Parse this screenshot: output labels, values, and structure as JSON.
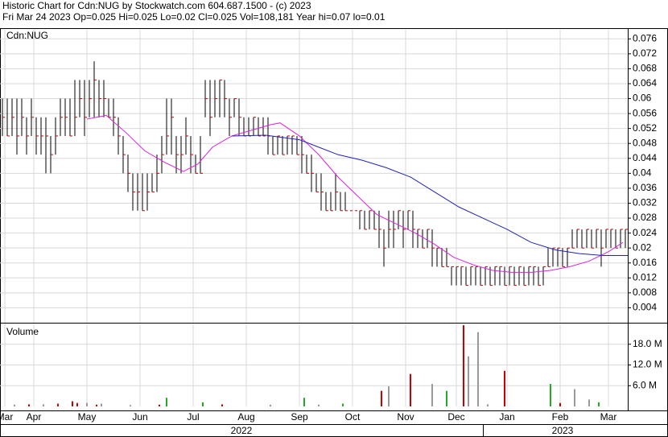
{
  "header": {
    "line1": "Historic Chart for Cdn:NUG by Stockwatch.com 604.687.1500 - (c) 2023",
    "line2": "Fri Mar 24 2023   Op=0.025   Hi=0.025   Lo=0.02   Cl=0.025   Vol=108,181   Year hi=0.07   lo=0.01"
  },
  "chart_data": [
    {
      "type": "ohlc",
      "title": "Cdn:NUG",
      "bar_color": "#000000",
      "close_color": "#cc0000",
      "grid": true,
      "xlim": [
        0,
        130
      ],
      "ylim": [
        0,
        0.078
      ],
      "yticks": [
        0.004,
        0.008,
        0.012,
        0.016,
        0.02,
        0.024,
        0.028,
        0.032,
        0.036,
        0.04,
        0.044,
        0.048,
        0.052,
        0.056,
        0.06,
        0.064,
        0.068,
        0.072,
        0.076
      ],
      "close": [
        0.055,
        0.05,
        0.055,
        0.05,
        0.055,
        0.05,
        0.055,
        0.05,
        0.05,
        0.05,
        0.045,
        0.05,
        0.055,
        0.055,
        0.05,
        0.055,
        0.06,
        0.055,
        0.06,
        0.065,
        0.06,
        0.06,
        0.055,
        0.055,
        0.05,
        0.045,
        0.04,
        0.035,
        0.035,
        0.03,
        0.035,
        0.035,
        0.04,
        0.045,
        0.05,
        0.055,
        0.045,
        0.045,
        0.05,
        0.045,
        0.04,
        0.04,
        0.06,
        0.055,
        0.06,
        0.065,
        0.06,
        0.055,
        0.06,
        0.055,
        0.05,
        0.05,
        0.055,
        0.05,
        0.05,
        0.05,
        0.045,
        0.05,
        0.045,
        0.05,
        0.05,
        0.045,
        0.045,
        0.04,
        0.04,
        0.035,
        0.035,
        0.03,
        0.03,
        0.035,
        0.03,
        0.03,
        0.03,
        0.03,
        0.03,
        0.025,
        0.03,
        0.025,
        0.025,
        0.02,
        0.025,
        0.025,
        0.03,
        0.025,
        0.03,
        0.025,
        0.025,
        0.02,
        0.025,
        0.02,
        0.02,
        0.015,
        0.015,
        0.015,
        0.015,
        0.015,
        0.01,
        0.015,
        0.015,
        0.01,
        0.015,
        0.01,
        0.015,
        0.015,
        0.01,
        0.015,
        0.01,
        0.015,
        0.01,
        0.015,
        0.015,
        0.01,
        0.015,
        0.015,
        0.02,
        0.02,
        0.015,
        0.02,
        0.02,
        0.025,
        0.02,
        0.025,
        0.02,
        0.025,
        0.02,
        0.025,
        0.025,
        0.02,
        0.025,
        0.025
      ],
      "high": [
        0.06,
        0.06,
        0.06,
        0.06,
        0.06,
        0.055,
        0.06,
        0.055,
        0.055,
        0.055,
        0.05,
        0.055,
        0.06,
        0.06,
        0.06,
        0.065,
        0.065,
        0.065,
        0.065,
        0.07,
        0.065,
        0.065,
        0.06,
        0.06,
        0.055,
        0.05,
        0.045,
        0.04,
        0.04,
        0.04,
        0.04,
        0.04,
        0.045,
        0.05,
        0.06,
        0.06,
        0.05,
        0.05,
        0.055,
        0.05,
        0.045,
        0.05,
        0.065,
        0.065,
        0.065,
        0.065,
        0.065,
        0.06,
        0.06,
        0.06,
        0.055,
        0.055,
        0.055,
        0.055,
        0.055,
        0.055,
        0.05,
        0.05,
        0.05,
        0.05,
        0.05,
        0.05,
        0.05,
        0.045,
        0.045,
        0.04,
        0.04,
        0.035,
        0.035,
        0.04,
        0.035,
        0.035,
        0.03,
        0.03,
        0.03,
        0.03,
        0.03,
        0.03,
        0.03,
        0.025,
        0.03,
        0.03,
        0.03,
        0.03,
        0.03,
        0.03,
        0.025,
        0.025,
        0.025,
        0.025,
        0.02,
        0.02,
        0.02,
        0.015,
        0.015,
        0.015,
        0.015,
        0.015,
        0.015,
        0.015,
        0.015,
        0.015,
        0.015,
        0.015,
        0.015,
        0.015,
        0.015,
        0.015,
        0.015,
        0.015,
        0.015,
        0.015,
        0.015,
        0.02,
        0.02,
        0.02,
        0.02,
        0.02,
        0.025,
        0.025,
        0.025,
        0.025,
        0.025,
        0.025,
        0.025,
        0.025,
        0.025,
        0.025,
        0.025,
        0.025
      ],
      "low": [
        0.05,
        0.05,
        0.05,
        0.045,
        0.05,
        0.045,
        0.05,
        0.045,
        0.045,
        0.04,
        0.04,
        0.045,
        0.05,
        0.05,
        0.05,
        0.05,
        0.055,
        0.05,
        0.055,
        0.055,
        0.055,
        0.055,
        0.055,
        0.05,
        0.045,
        0.04,
        0.035,
        0.03,
        0.03,
        0.03,
        0.03,
        0.035,
        0.035,
        0.04,
        0.045,
        0.045,
        0.04,
        0.04,
        0.045,
        0.04,
        0.04,
        0.04,
        0.055,
        0.05,
        0.055,
        0.055,
        0.055,
        0.05,
        0.055,
        0.05,
        0.05,
        0.05,
        0.05,
        0.05,
        0.05,
        0.045,
        0.045,
        0.045,
        0.045,
        0.045,
        0.045,
        0.045,
        0.04,
        0.04,
        0.035,
        0.035,
        0.03,
        0.03,
        0.03,
        0.03,
        0.03,
        0.03,
        0.03,
        0.03,
        0.025,
        0.025,
        0.025,
        0.025,
        0.02,
        0.015,
        0.02,
        0.02,
        0.025,
        0.02,
        0.025,
        0.02,
        0.02,
        0.02,
        0.02,
        0.015,
        0.015,
        0.015,
        0.015,
        0.01,
        0.01,
        0.01,
        0.01,
        0.01,
        0.01,
        0.01,
        0.01,
        0.01,
        0.01,
        0.01,
        0.01,
        0.01,
        0.01,
        0.01,
        0.01,
        0.01,
        0.01,
        0.01,
        0.01,
        0.015,
        0.015,
        0.015,
        0.015,
        0.015,
        0.02,
        0.02,
        0.02,
        0.02,
        0.02,
        0.02,
        0.015,
        0.02,
        0.02,
        0.02,
        0.02,
        0.02
      ],
      "lines": [
        {
          "color": "#dd22dd",
          "x": [
            18,
            22,
            26,
            30,
            34,
            38,
            41,
            44,
            48,
            52,
            56,
            58,
            62,
            66,
            70,
            74,
            78,
            82,
            86,
            90,
            94,
            98,
            102,
            106,
            110,
            114,
            118,
            122,
            126,
            129
          ],
          "values": [
            0.0545,
            0.0555,
            0.051,
            0.046,
            0.043,
            0.0405,
            0.0425,
            0.047,
            0.05,
            0.0515,
            0.053,
            0.0535,
            0.05,
            0.045,
            0.039,
            0.034,
            0.029,
            0.0265,
            0.024,
            0.021,
            0.0175,
            0.0155,
            0.014,
            0.0135,
            0.0135,
            0.014,
            0.015,
            0.0165,
            0.019,
            0.0215
          ]
        },
        {
          "color": "#2222bb",
          "x": [
            48,
            55,
            62,
            66,
            70,
            75,
            80,
            85,
            90,
            95,
            100,
            105,
            110,
            115,
            120,
            125,
            130
          ],
          "values": [
            0.05,
            0.0502,
            0.049,
            0.047,
            0.045,
            0.0435,
            0.0415,
            0.039,
            0.035,
            0.031,
            0.028,
            0.025,
            0.0215,
            0.0195,
            0.0185,
            0.018,
            0.018
          ]
        }
      ]
    },
    {
      "type": "volume",
      "title": "Volume",
      "grid": true,
      "xlim": [
        0,
        130
      ],
      "ylim": [
        0,
        24
      ],
      "yticks": [
        {
          "value": 6,
          "label": "6.0 M"
        },
        {
          "value": 12,
          "label": "12.0 M"
        },
        {
          "value": 18,
          "label": "18.0 M"
        }
      ],
      "xticks": [
        {
          "value": 1,
          "label": "Mar"
        },
        {
          "value": 7,
          "label": "Apr"
        },
        {
          "value": 18,
          "label": "May"
        },
        {
          "value": 29,
          "label": "Jun"
        },
        {
          "value": 40,
          "label": "Jul"
        },
        {
          "value": 51,
          "label": "Aug"
        },
        {
          "value": 62,
          "label": "Sep"
        },
        {
          "value": 73,
          "label": "Oct"
        },
        {
          "value": 84,
          "label": "Nov"
        },
        {
          "value": 94.5,
          "label": "Dec"
        },
        {
          "value": 105,
          "label": "Jan"
        },
        {
          "value": 116,
          "label": "Feb"
        },
        {
          "value": 126,
          "label": "Mar"
        }
      ],
      "year_ticks": [
        {
          "value": 50,
          "label": "2022"
        },
        {
          "value": 116.5,
          "label": "2023"
        }
      ],
      "series": [
        {
          "color": "#cc0000",
          "x": [
            6,
            12,
            15,
            16,
            20,
            33,
            46,
            79,
            85,
            96,
            104.5,
            116
          ],
          "values": [
            0.6,
            0.8,
            1.5,
            1.0,
            0.5,
            0.5,
            0.6,
            4.5,
            9.4,
            23.5,
            10.3,
            1.0
          ]
        },
        {
          "color": "#22aa22",
          "x": [
            34.5,
            42,
            63,
            71,
            92.5,
            114,
            124
          ],
          "values": [
            2.5,
            1.2,
            2.5,
            0.8,
            4.5,
            6.5,
            1.2
          ]
        },
        {
          "color": "#999999",
          "x": [
            3,
            9,
            18,
            21,
            27,
            56,
            66,
            80.5,
            89.5,
            97,
            99,
            101,
            119,
            122
          ],
          "values": [
            0.5,
            0.6,
            1.0,
            0.8,
            0.4,
            0.5,
            0.5,
            5.8,
            6.5,
            14.5,
            21.5,
            0.6,
            5,
            2
          ]
        }
      ]
    }
  ]
}
